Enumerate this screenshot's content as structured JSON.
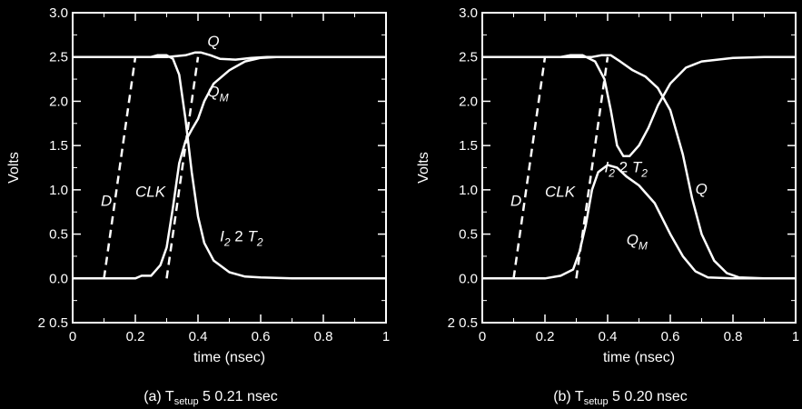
{
  "chart_data": [
    {
      "type": "line",
      "caption": "(a) T",
      "caption_sub": "setup",
      "caption_rest": " 5  0.21 nsec",
      "ylabel": "Volts",
      "xlabel": "time (nsec)",
      "xlim": [
        0,
        1
      ],
      "ylim": [
        -0.5,
        3.0
      ],
      "xticks": [
        "0",
        "0.2",
        "0.4",
        "0.6",
        "0.8",
        "1"
      ],
      "yticks": [
        "2 0.5",
        "0.0",
        "0.5",
        "1.0",
        "1.5",
        "2.0",
        "2.5",
        "3.0"
      ],
      "annotations": [
        {
          "text": "Q",
          "x": 0.43,
          "y": 2.62
        },
        {
          "text": "Q",
          "sub": "M",
          "x": 0.43,
          "y": 2.05
        },
        {
          "text": "D",
          "x": 0.09,
          "y": 0.82
        },
        {
          "text": "CLK",
          "x": 0.2,
          "y": 0.92
        },
        {
          "text": "I",
          "sub": "2",
          "rest": " 2  ",
          "text2": "T",
          "sub2": "2",
          "x": 0.47,
          "y": 0.42
        }
      ],
      "series": [
        {
          "style": "dashed",
          "points": [
            [
              0.1,
              0
            ],
            [
              0.2,
              2.5
            ]
          ]
        },
        {
          "style": "dashed",
          "points": [
            [
              0.3,
              0
            ],
            [
              0.4,
              2.5
            ]
          ]
        },
        {
          "style": "solid",
          "points": [
            [
              0,
              2.5
            ],
            [
              0.25,
              2.5
            ],
            [
              0.27,
              2.52
            ],
            [
              0.3,
              2.52
            ],
            [
              0.32,
              2.48
            ],
            [
              0.34,
              2.3
            ],
            [
              0.36,
              1.8
            ],
            [
              0.38,
              1.2
            ],
            [
              0.4,
              0.7
            ],
            [
              0.42,
              0.4
            ],
            [
              0.45,
              0.2
            ],
            [
              0.5,
              0.07
            ],
            [
              0.55,
              0.02
            ],
            [
              0.6,
              0.01
            ],
            [
              0.7,
              0
            ],
            [
              1,
              0
            ]
          ]
        },
        {
          "style": "solid",
          "points": [
            [
              0,
              0
            ],
            [
              0.2,
              0
            ],
            [
              0.22,
              0.03
            ],
            [
              0.25,
              0.03
            ],
            [
              0.28,
              0.15
            ],
            [
              0.3,
              0.35
            ],
            [
              0.32,
              0.8
            ],
            [
              0.34,
              1.3
            ],
            [
              0.36,
              1.55
            ],
            [
              0.38,
              1.68
            ],
            [
              0.4,
              1.8
            ],
            [
              0.42,
              2.0
            ],
            [
              0.45,
              2.2
            ],
            [
              0.5,
              2.35
            ],
            [
              0.55,
              2.45
            ],
            [
              0.6,
              2.49
            ],
            [
              0.65,
              2.5
            ],
            [
              1,
              2.5
            ]
          ]
        },
        {
          "style": "solid",
          "points": [
            [
              0,
              2.5
            ],
            [
              0.3,
              2.5
            ],
            [
              0.36,
              2.52
            ],
            [
              0.39,
              2.55
            ],
            [
              0.41,
              2.55
            ],
            [
              0.44,
              2.52
            ],
            [
              0.47,
              2.48
            ],
            [
              0.52,
              2.47
            ],
            [
              0.57,
              2.49
            ],
            [
              0.62,
              2.5
            ],
            [
              1,
              2.5
            ]
          ]
        }
      ]
    },
    {
      "type": "line",
      "caption": "(b) T",
      "caption_sub": "setup",
      "caption_rest": " 5  0.20 nsec",
      "ylabel": "Volts",
      "xlabel": "time (nsec)",
      "xlim": [
        0,
        1
      ],
      "ylim": [
        -0.5,
        3.0
      ],
      "xticks": [
        "0",
        "0.2",
        "0.4",
        "0.6",
        "0.8",
        "1"
      ],
      "yticks": [
        "2 0.5",
        "0.0",
        "0.5",
        "1.0",
        "1.5",
        "2.0",
        "2.5",
        "3.0"
      ],
      "annotations": [
        {
          "text": "D",
          "x": 0.09,
          "y": 0.82
        },
        {
          "text": "CLK",
          "x": 0.2,
          "y": 0.92
        },
        {
          "text": "I",
          "sub": "2",
          "rest": " 2  ",
          "text2": "T",
          "sub2": "2",
          "x": 0.39,
          "y": 1.2
        },
        {
          "text": "Q",
          "x": 0.68,
          "y": 0.95
        },
        {
          "text": "Q",
          "sub": "M",
          "x": 0.46,
          "y": 0.38
        }
      ],
      "series": [
        {
          "style": "dashed",
          "points": [
            [
              0.1,
              0
            ],
            [
              0.2,
              2.5
            ]
          ]
        },
        {
          "style": "dashed",
          "points": [
            [
              0.3,
              0
            ],
            [
              0.4,
              2.5
            ]
          ]
        },
        {
          "style": "solid",
          "points": [
            [
              0,
              2.5
            ],
            [
              0.25,
              2.5
            ],
            [
              0.28,
              2.52
            ],
            [
              0.32,
              2.52
            ],
            [
              0.36,
              2.45
            ],
            [
              0.39,
              2.25
            ],
            [
              0.41,
              1.9
            ],
            [
              0.43,
              1.5
            ],
            [
              0.45,
              1.38
            ],
            [
              0.47,
              1.38
            ],
            [
              0.5,
              1.5
            ],
            [
              0.53,
              1.7
            ],
            [
              0.56,
              1.95
            ],
            [
              0.6,
              2.2
            ],
            [
              0.65,
              2.38
            ],
            [
              0.7,
              2.45
            ],
            [
              0.8,
              2.49
            ],
            [
              0.9,
              2.5
            ],
            [
              1,
              2.5
            ]
          ]
        },
        {
          "style": "solid",
          "points": [
            [
              0,
              0
            ],
            [
              0.2,
              0
            ],
            [
              0.25,
              0.03
            ],
            [
              0.29,
              0.1
            ],
            [
              0.31,
              0.3
            ],
            [
              0.33,
              0.6
            ],
            [
              0.35,
              1.0
            ],
            [
              0.37,
              1.2
            ],
            [
              0.4,
              1.28
            ],
            [
              0.43,
              1.25
            ],
            [
              0.46,
              1.15
            ],
            [
              0.5,
              1.05
            ],
            [
              0.55,
              0.85
            ],
            [
              0.6,
              0.5
            ],
            [
              0.64,
              0.25
            ],
            [
              0.68,
              0.08
            ],
            [
              0.72,
              0.01
            ],
            [
              0.8,
              0
            ],
            [
              1,
              0
            ]
          ]
        },
        {
          "style": "solid",
          "points": [
            [
              0,
              2.5
            ],
            [
              0.35,
              2.5
            ],
            [
              0.38,
              2.52
            ],
            [
              0.41,
              2.52
            ],
            [
              0.44,
              2.45
            ],
            [
              0.48,
              2.35
            ],
            [
              0.52,
              2.28
            ],
            [
              0.56,
              2.15
            ],
            [
              0.6,
              1.9
            ],
            [
              0.64,
              1.4
            ],
            [
              0.67,
              0.9
            ],
            [
              0.7,
              0.5
            ],
            [
              0.74,
              0.2
            ],
            [
              0.78,
              0.06
            ],
            [
              0.82,
              0.01
            ],
            [
              0.9,
              0
            ],
            [
              1,
              0
            ]
          ]
        }
      ]
    }
  ]
}
